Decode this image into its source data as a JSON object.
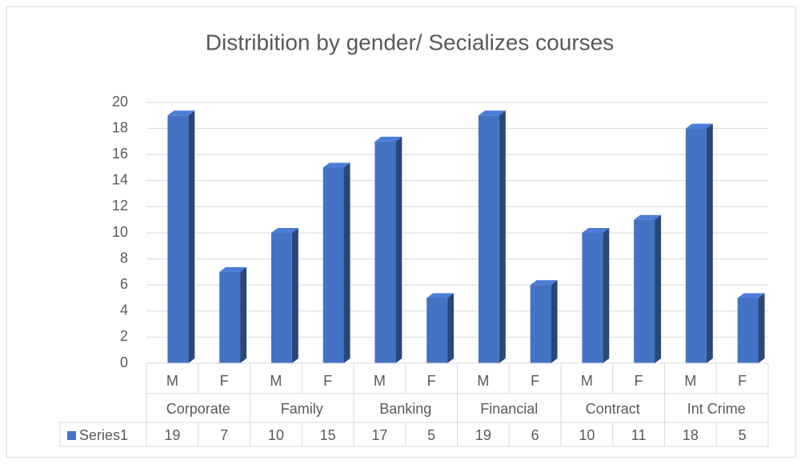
{
  "chart_data": {
    "type": "bar3d",
    "title": "Distribition by gender/ Secializes courses",
    "categories": [
      "M",
      "F",
      "M",
      "F",
      "M",
      "F",
      "M",
      "F",
      "M",
      "F",
      "M",
      "F"
    ],
    "groups": [
      "Corporate",
      "Family",
      "Banking",
      "Financial",
      "Contract",
      "Int Crime"
    ],
    "series": [
      {
        "name": "Series1",
        "color": "#4472c4",
        "values": [
          19,
          7,
          10,
          15,
          17,
          5,
          19,
          6,
          10,
          11,
          18,
          5
        ]
      }
    ],
    "ylim": [
      0,
      20
    ],
    "yticks": [
      0,
      2,
      4,
      6,
      8,
      10,
      12,
      14,
      16,
      18,
      20
    ],
    "grid": true,
    "data_table": true
  }
}
